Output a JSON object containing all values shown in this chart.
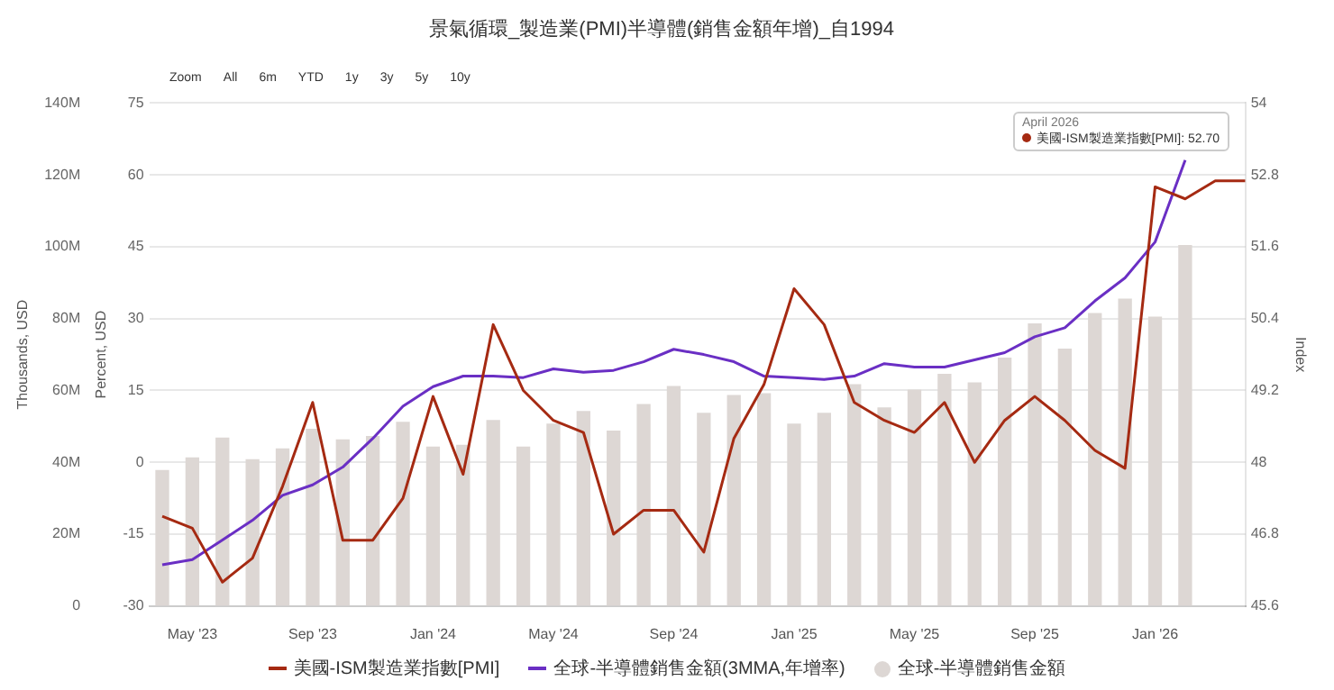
{
  "chart_data": {
    "type": "bar",
    "title": "景氣循環_製造業(PMI)半導體(銷售金額年增)_自1994",
    "annotations": [
      "Zoom",
      "All",
      "6m",
      "YTD",
      "1y",
      "3y",
      "5y",
      "10y",
      "April 2026\n美國-ISM製造業指數[PMI]: 52.70"
    ],
    "ylabel": "Thousands, USD",
    "y2label": "Percent, USD",
    "y3label": "Index",
    "x": [
      "2023-04",
      "2023-05",
      "2023-06",
      "2023-07",
      "2023-08",
      "2023-09",
      "2023-10",
      "2023-11",
      "2023-12",
      "2024-01",
      "2024-02",
      "2024-03",
      "2024-04",
      "2024-05",
      "2024-06",
      "2024-07",
      "2024-08",
      "2024-09",
      "2024-10",
      "2024-11",
      "2024-12",
      "2025-01",
      "2025-02",
      "2025-03",
      "2025-04",
      "2025-05",
      "2025-06",
      "2025-07",
      "2025-08",
      "2025-09",
      "2025-10",
      "2025-11",
      "2025-12",
      "2026-01",
      "2026-02",
      "2026-03",
      "2026-04"
    ],
    "xlim": [
      "2023-03-18",
      "2026-04"
    ],
    "xticks": [
      {
        "value": "2023-05",
        "label": "May '23"
      },
      {
        "value": "2023-09",
        "label": "Sep '23"
      },
      {
        "value": "2024-01",
        "label": "Jan '24"
      },
      {
        "value": "2024-05",
        "label": "May '24"
      },
      {
        "value": "2024-09",
        "label": "Sep '24"
      },
      {
        "value": "2025-01",
        "label": "Jan '25"
      },
      {
        "value": "2025-05",
        "label": "May '25"
      },
      {
        "value": "2025-09",
        "label": "Sep '25"
      },
      {
        "value": "2026-01",
        "label": "Jan '26"
      }
    ],
    "ylim": [
      0,
      140
    ],
    "yticks": [
      {
        "value": 0,
        "label": "0"
      },
      {
        "value": 20,
        "label": "20M"
      },
      {
        "value": 40,
        "label": "40M"
      },
      {
        "value": 60,
        "label": "60M"
      },
      {
        "value": 80,
        "label": "80M"
      },
      {
        "value": 100,
        "label": "100M"
      },
      {
        "value": 120,
        "label": "120M"
      },
      {
        "value": 140,
        "label": "140M"
      }
    ],
    "y2lim": [
      -30,
      75
    ],
    "y2ticks": [
      -30,
      -15,
      0,
      15,
      30,
      45,
      60,
      75
    ],
    "y3lim": [
      45.6,
      54
    ],
    "y3ticks": [
      45.6,
      46.8,
      48,
      49.2,
      50.4,
      51.6,
      52.8,
      54
    ],
    "grid": "y",
    "legend": "bottom",
    "marker": "none",
    "series": [
      {
        "name": "美國-ISM製造業指數[PMI]",
        "type": "line",
        "axis": "y3",
        "color": "#a52a12",
        "values": [
          47.1,
          46.9,
          46.0,
          46.4,
          47.6,
          49.0,
          46.7,
          46.7,
          47.4,
          49.1,
          47.8,
          50.3,
          49.2,
          48.7,
          48.5,
          46.8,
          47.2,
          47.2,
          46.5,
          48.4,
          49.3,
          50.9,
          50.3,
          49.0,
          48.7,
          48.5,
          49.0,
          48.0,
          48.7,
          49.1,
          48.7,
          48.2,
          47.9,
          52.6,
          52.4,
          52.7,
          52.7
        ]
      },
      {
        "name": "全球-半導體銷售金額(3MMA,年增率)",
        "type": "line",
        "axis": "y2",
        "color": "#6a2fc4",
        "values": [
          -21.4,
          -20.3,
          -16.2,
          -12.1,
          -6.9,
          -4.7,
          -1.0,
          5.0,
          11.7,
          15.8,
          18.0,
          18.0,
          17.7,
          19.5,
          18.8,
          19.2,
          21.0,
          23.6,
          22.5,
          21.0,
          18.0,
          17.7,
          17.3,
          18.0,
          20.6,
          19.9,
          19.9,
          21.4,
          22.9,
          26.2,
          28.1,
          33.7,
          38.5,
          46.0,
          63.1,
          null,
          null
        ]
      },
      {
        "name": "全球-半導體銷售金額",
        "color": "#ddd7d4",
        "values": [
          37.7,
          41.2,
          46.7,
          40.7,
          43.7,
          49.2,
          46.2,
          47.2,
          51.1,
          44.2,
          44.7,
          51.6,
          44.2,
          50.6,
          54.1,
          48.7,
          56.1,
          61.1,
          53.6,
          58.6,
          59.1,
          50.6,
          53.6,
          61.6,
          55.1,
          60.1,
          64.5,
          62.1,
          69.0,
          78.5,
          71.5,
          81.4,
          85.4,
          80.4,
          100.3,
          null,
          null
        ]
      }
    ]
  }
}
